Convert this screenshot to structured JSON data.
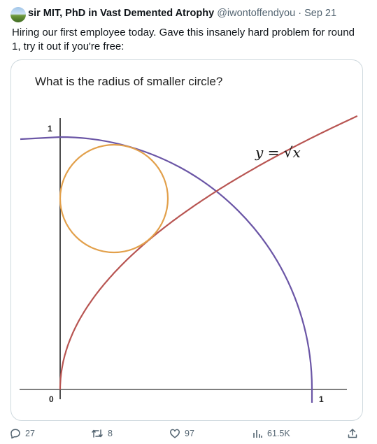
{
  "tweet": {
    "author_name": "sir MIT, PhD in Vast Demented Atrophy",
    "handle": "@iwontoffendyou",
    "separator": "·",
    "date": "Sep 21",
    "text": "Hiring our first employee today. Gave this insanely hard problem for round 1, try it out if you're free:"
  },
  "figure": {
    "question": "What is the radius of smaller circle?",
    "curve_label": "y = √x",
    "tick_y_one": "1",
    "tick_origin": "0",
    "tick_x_one": "1",
    "colors": {
      "quarter_circle": "#6b56a6",
      "sqrt_curve": "#b85552",
      "small_circle": "#e2a04b"
    }
  },
  "actions": {
    "reply_count": "27",
    "retweet_count": "8",
    "like_count": "97",
    "view_count": "61.5K"
  }
}
